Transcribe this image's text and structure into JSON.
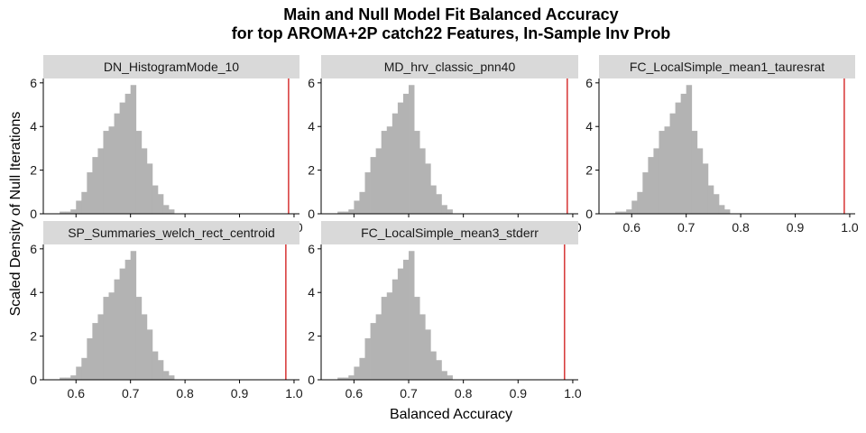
{
  "title_line1": "Main and Null Model Fit Balanced Accuracy",
  "title_line2": "for top AROMA+2P catch22 Features, In-Sample Inv Prob",
  "ylabel": "Scaled Density of Null Iterations",
  "xlabel": "Balanced Accuracy",
  "colors": {
    "bar": "#b3b3b3",
    "strip": "#d9d9d9",
    "line": "#cc0000",
    "axis": "#000000"
  },
  "chart_data": {
    "type": "histogram",
    "xlim": [
      0.54,
      1.01
    ],
    "ylim": [
      0,
      6.2
    ],
    "xticks": [
      0.6,
      0.7,
      0.8,
      0.9,
      1.0
    ],
    "xtick_labels": [
      "0.6",
      "0.7",
      "0.8",
      "0.9",
      "1.0"
    ],
    "yticks": [
      0,
      2,
      4,
      6
    ],
    "ytick_labels": [
      "0",
      "2",
      "4",
      "6"
    ],
    "bin_width": 0.01,
    "bin_starts": [
      0.57,
      0.58,
      0.59,
      0.6,
      0.61,
      0.62,
      0.63,
      0.64,
      0.65,
      0.66,
      0.67,
      0.68,
      0.69,
      0.7,
      0.71,
      0.72,
      0.73,
      0.74,
      0.75,
      0.76,
      0.77
    ],
    "panels": [
      {
        "label": "DN_HistogramMode_10",
        "main_value": 0.99,
        "density": [
          0.1,
          0.1,
          0.2,
          0.6,
          1.0,
          1.9,
          2.6,
          3.0,
          3.8,
          4.0,
          4.6,
          5.1,
          5.5,
          5.9,
          3.8,
          3.0,
          2.3,
          1.3,
          0.9,
          0.4,
          0.2
        ]
      },
      {
        "label": "MD_hrv_classic_pnn40",
        "main_value": 0.99,
        "density": [
          0.1,
          0.1,
          0.2,
          0.6,
          1.0,
          1.9,
          2.6,
          3.0,
          3.8,
          4.0,
          4.6,
          5.1,
          5.5,
          5.9,
          3.8,
          3.0,
          2.3,
          1.3,
          0.9,
          0.4,
          0.2
        ]
      },
      {
        "label": "FC_LocalSimple_mean1_tauresrat",
        "main_value": 0.99,
        "density": [
          0.1,
          0.1,
          0.2,
          0.6,
          1.0,
          1.9,
          2.6,
          3.0,
          3.8,
          4.0,
          4.6,
          5.1,
          5.5,
          5.9,
          3.8,
          3.0,
          2.3,
          1.3,
          0.9,
          0.4,
          0.2
        ]
      },
      {
        "label": "SP_Summaries_welch_rect_centroid",
        "main_value": 0.985,
        "density": [
          0.1,
          0.1,
          0.2,
          0.6,
          1.0,
          1.9,
          2.6,
          3.0,
          3.8,
          4.0,
          4.6,
          5.1,
          5.5,
          5.9,
          3.8,
          3.0,
          2.3,
          1.3,
          0.9,
          0.4,
          0.2
        ]
      },
      {
        "label": "FC_LocalSimple_mean3_stderr",
        "main_value": 0.985,
        "density": [
          0.1,
          0.1,
          0.2,
          0.6,
          1.0,
          1.9,
          2.6,
          3.0,
          3.8,
          4.0,
          4.6,
          5.1,
          5.5,
          5.9,
          3.8,
          3.0,
          2.3,
          1.3,
          0.9,
          0.4,
          0.2
        ]
      }
    ]
  }
}
